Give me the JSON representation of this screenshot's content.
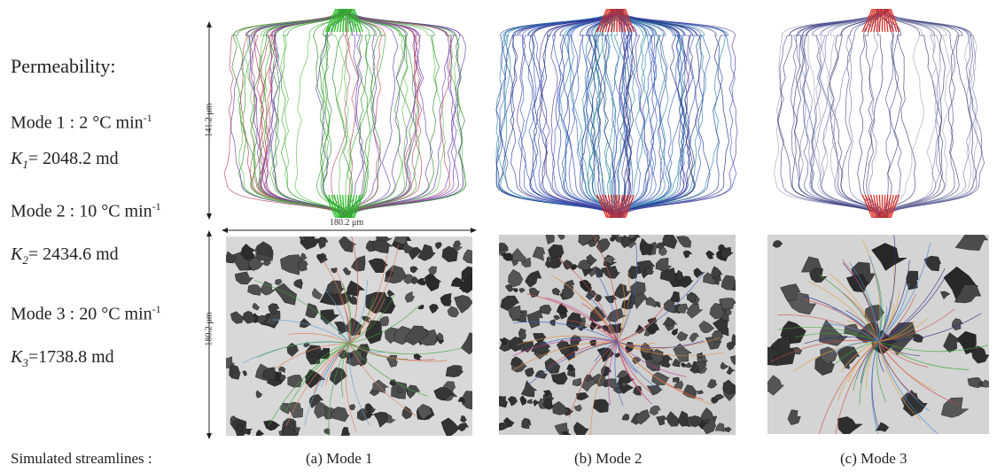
{
  "legend": {
    "heading": "Permeability:",
    "mode1_label": "Mode 1 : 2 °C min",
    "mode1_sup": "-1",
    "k1_symbol": "K",
    "k1_sub": "1",
    "k1_value": "= 2048.2 md",
    "mode2_label": "Mode 2 : 10 °C min",
    "mode2_sup": "-1",
    "k2_symbol": "K",
    "k2_sub": "2",
    "k2_value": "= 2434.6 md",
    "mode3_label": "Mode 3 : 20 °C min",
    "mode3_sup": "-1",
    "k3_symbol": "K",
    "k3_sub": "3",
    "k3_value": "=1738.8 md"
  },
  "scale": {
    "height_label": "141.2 μm",
    "width_label": "180.2 μm",
    "depth_label": "180.2 μm"
  },
  "captions": {
    "row_label": "Simulated streamlines :",
    "mode1": "(a) Mode 1",
    "mode2": "(b) Mode 2",
    "mode3": "(c) Mode 3"
  },
  "colors": {
    "mode1_streamlines": "#3aa832",
    "mode2_streamlines": "#2b3f9e",
    "mode3_streamlines": "#3a3f8a",
    "inlet_outlet": "#e0261b",
    "pore_solid": "#3c3c3c",
    "background_grey": "#d4d4d4"
  }
}
